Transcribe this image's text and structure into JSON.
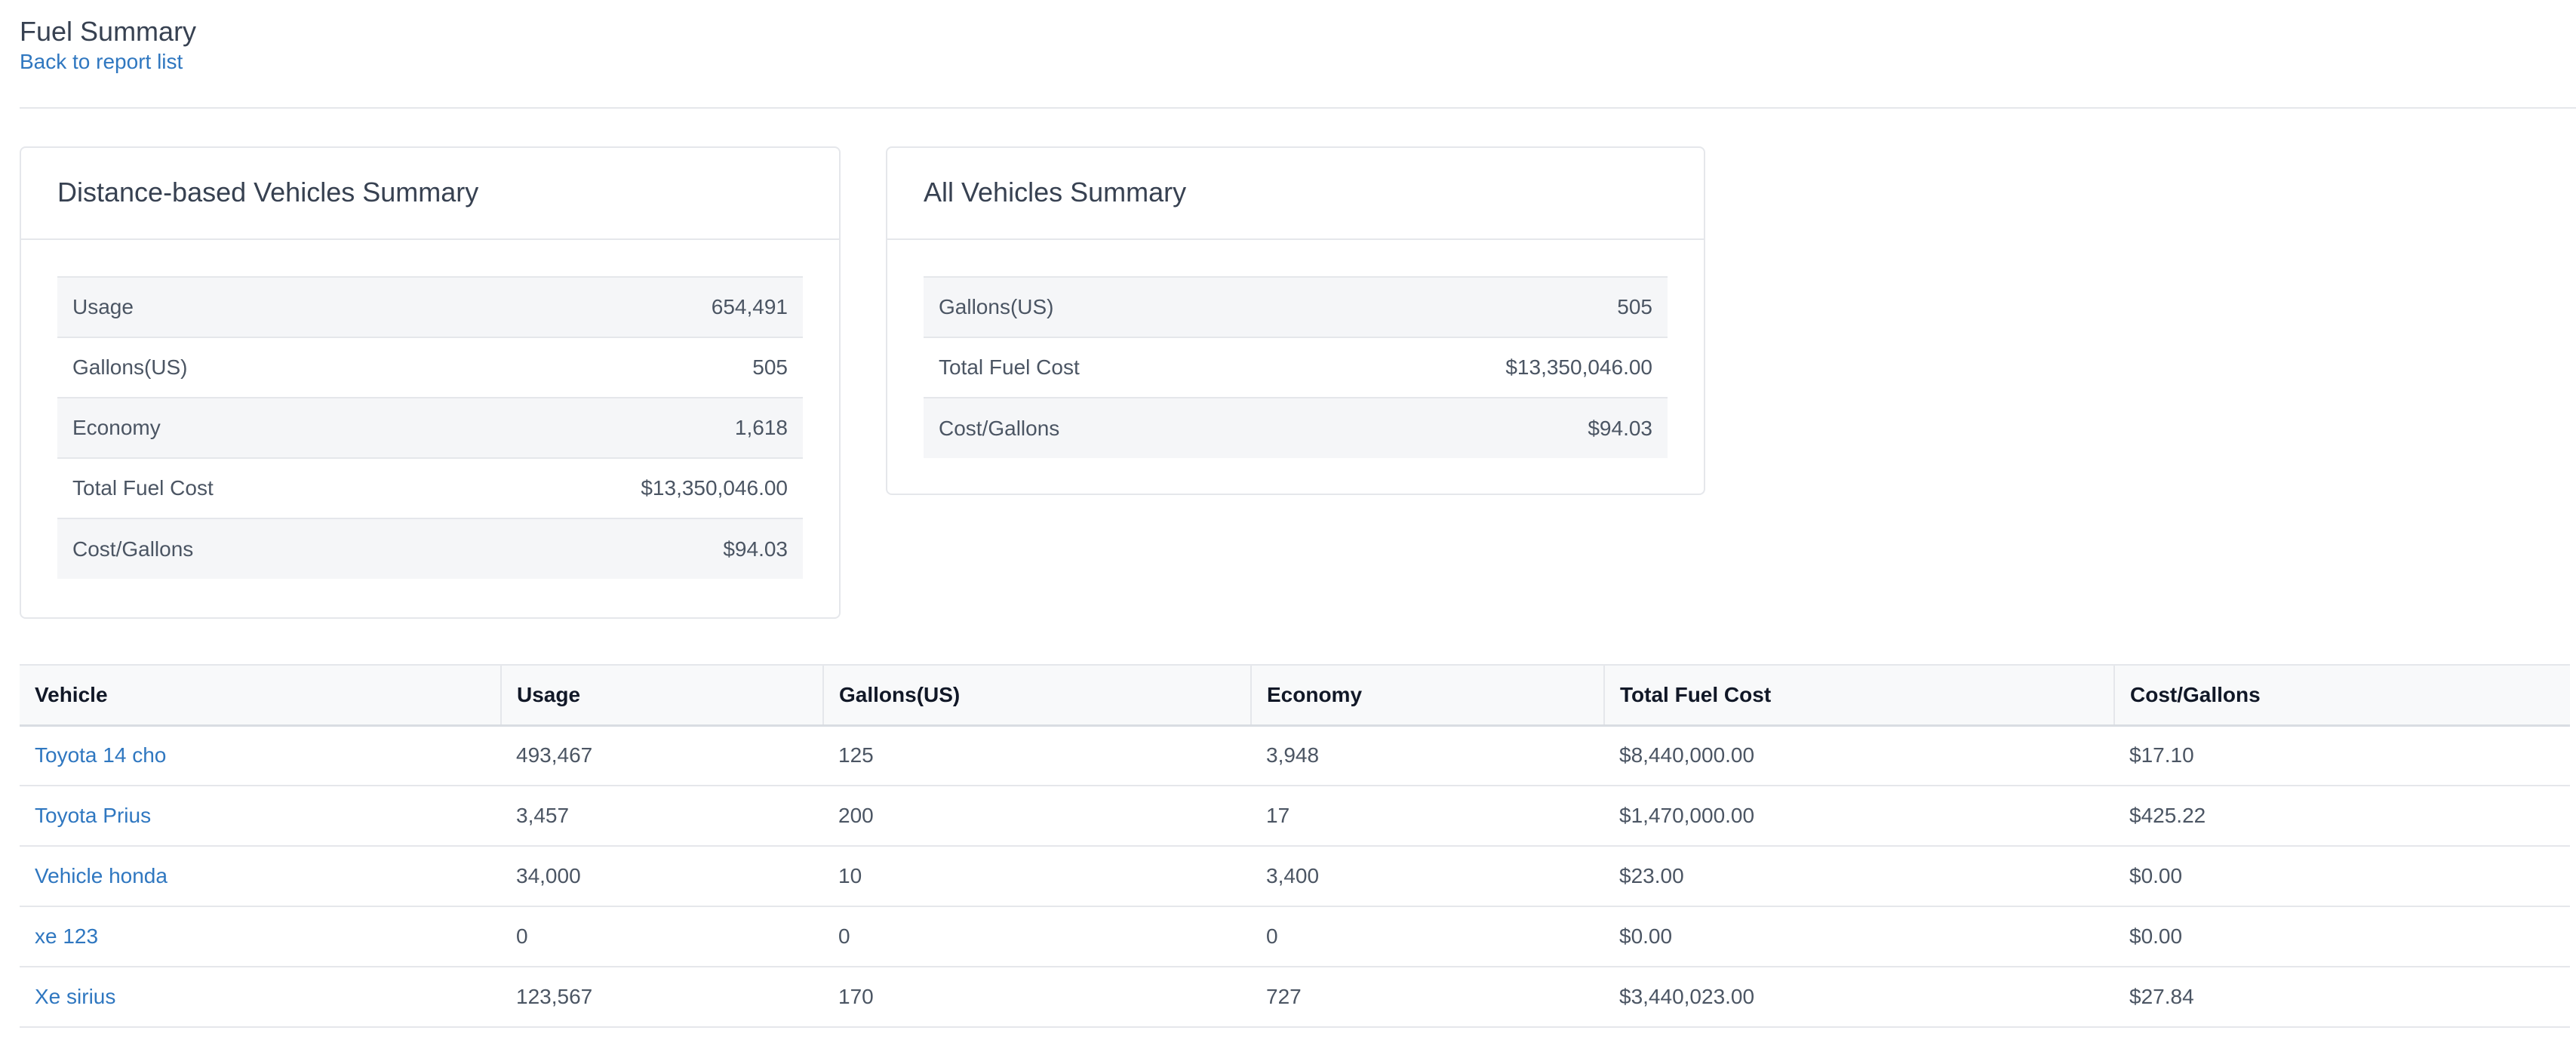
{
  "header": {
    "title": "Fuel Summary",
    "back_link": "Back to report list"
  },
  "distance_summary": {
    "title": "Distance-based Vehicles Summary",
    "rows": [
      {
        "label": "Usage",
        "value": "654,491"
      },
      {
        "label": "Gallons(US)",
        "value": "505"
      },
      {
        "label": "Economy",
        "value": "1,618"
      },
      {
        "label": "Total Fuel Cost",
        "value": "$13,350,046.00"
      },
      {
        "label": "Cost/Gallons",
        "value": "$94.03"
      }
    ]
  },
  "all_summary": {
    "title": "All Vehicles Summary",
    "rows": [
      {
        "label": "Gallons(US)",
        "value": "505"
      },
      {
        "label": "Total Fuel Cost",
        "value": "$13,350,046.00"
      },
      {
        "label": "Cost/Gallons",
        "value": "$94.03"
      }
    ]
  },
  "vehicles_table": {
    "columns": [
      "Vehicle",
      "Usage",
      "Gallons(US)",
      "Economy",
      "Total Fuel Cost",
      "Cost/Gallons"
    ],
    "rows": [
      [
        "Toyota 14 cho",
        "493,467",
        "125",
        "3,948",
        "$8,440,000.00",
        "$17.10"
      ],
      [
        "Toyota Prius",
        "3,457",
        "200",
        "17",
        "$1,470,000.00",
        "$425.22"
      ],
      [
        "Vehicle honda",
        "34,000",
        "10",
        "3,400",
        "$23.00",
        "$0.00"
      ],
      [
        "xe 123",
        "0",
        "0",
        "0",
        "$0.00",
        "$0.00"
      ],
      [
        "Xe sirius",
        "123,567",
        "170",
        "727",
        "$3,440,023.00",
        "$27.84"
      ]
    ]
  },
  "colors": {
    "link": "#2f77c0",
    "text": "#4b5563",
    "border": "#e5e7eb",
    "stripe": "#f5f6f8"
  }
}
